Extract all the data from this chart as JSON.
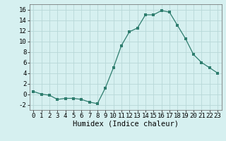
{
  "x": [
    0,
    1,
    2,
    3,
    4,
    5,
    6,
    7,
    8,
    9,
    10,
    11,
    12,
    13,
    14,
    15,
    16,
    17,
    18,
    19,
    20,
    21,
    22,
    23
  ],
  "y": [
    0.5,
    0.0,
    -0.2,
    -1.0,
    -0.8,
    -0.8,
    -1.0,
    -1.5,
    -1.8,
    1.2,
    5.0,
    9.2,
    11.8,
    12.5,
    15.0,
    15.0,
    15.8,
    15.5,
    13.0,
    10.5,
    7.5,
    6.0,
    5.0,
    4.0
  ],
  "line_color": "#2e7d6e",
  "marker": "s",
  "marker_size": 2.5,
  "bg_color": "#d6f0f0",
  "grid_color": "#b8d8d8",
  "xlabel": "Humidex (Indice chaleur)",
  "xlim": [
    -0.5,
    23.5
  ],
  "ylim": [
    -3,
    17
  ],
  "yticks": [
    -2,
    0,
    2,
    4,
    6,
    8,
    10,
    12,
    14,
    16
  ],
  "xlabel_fontsize": 7.5,
  "tick_fontsize": 6.5
}
